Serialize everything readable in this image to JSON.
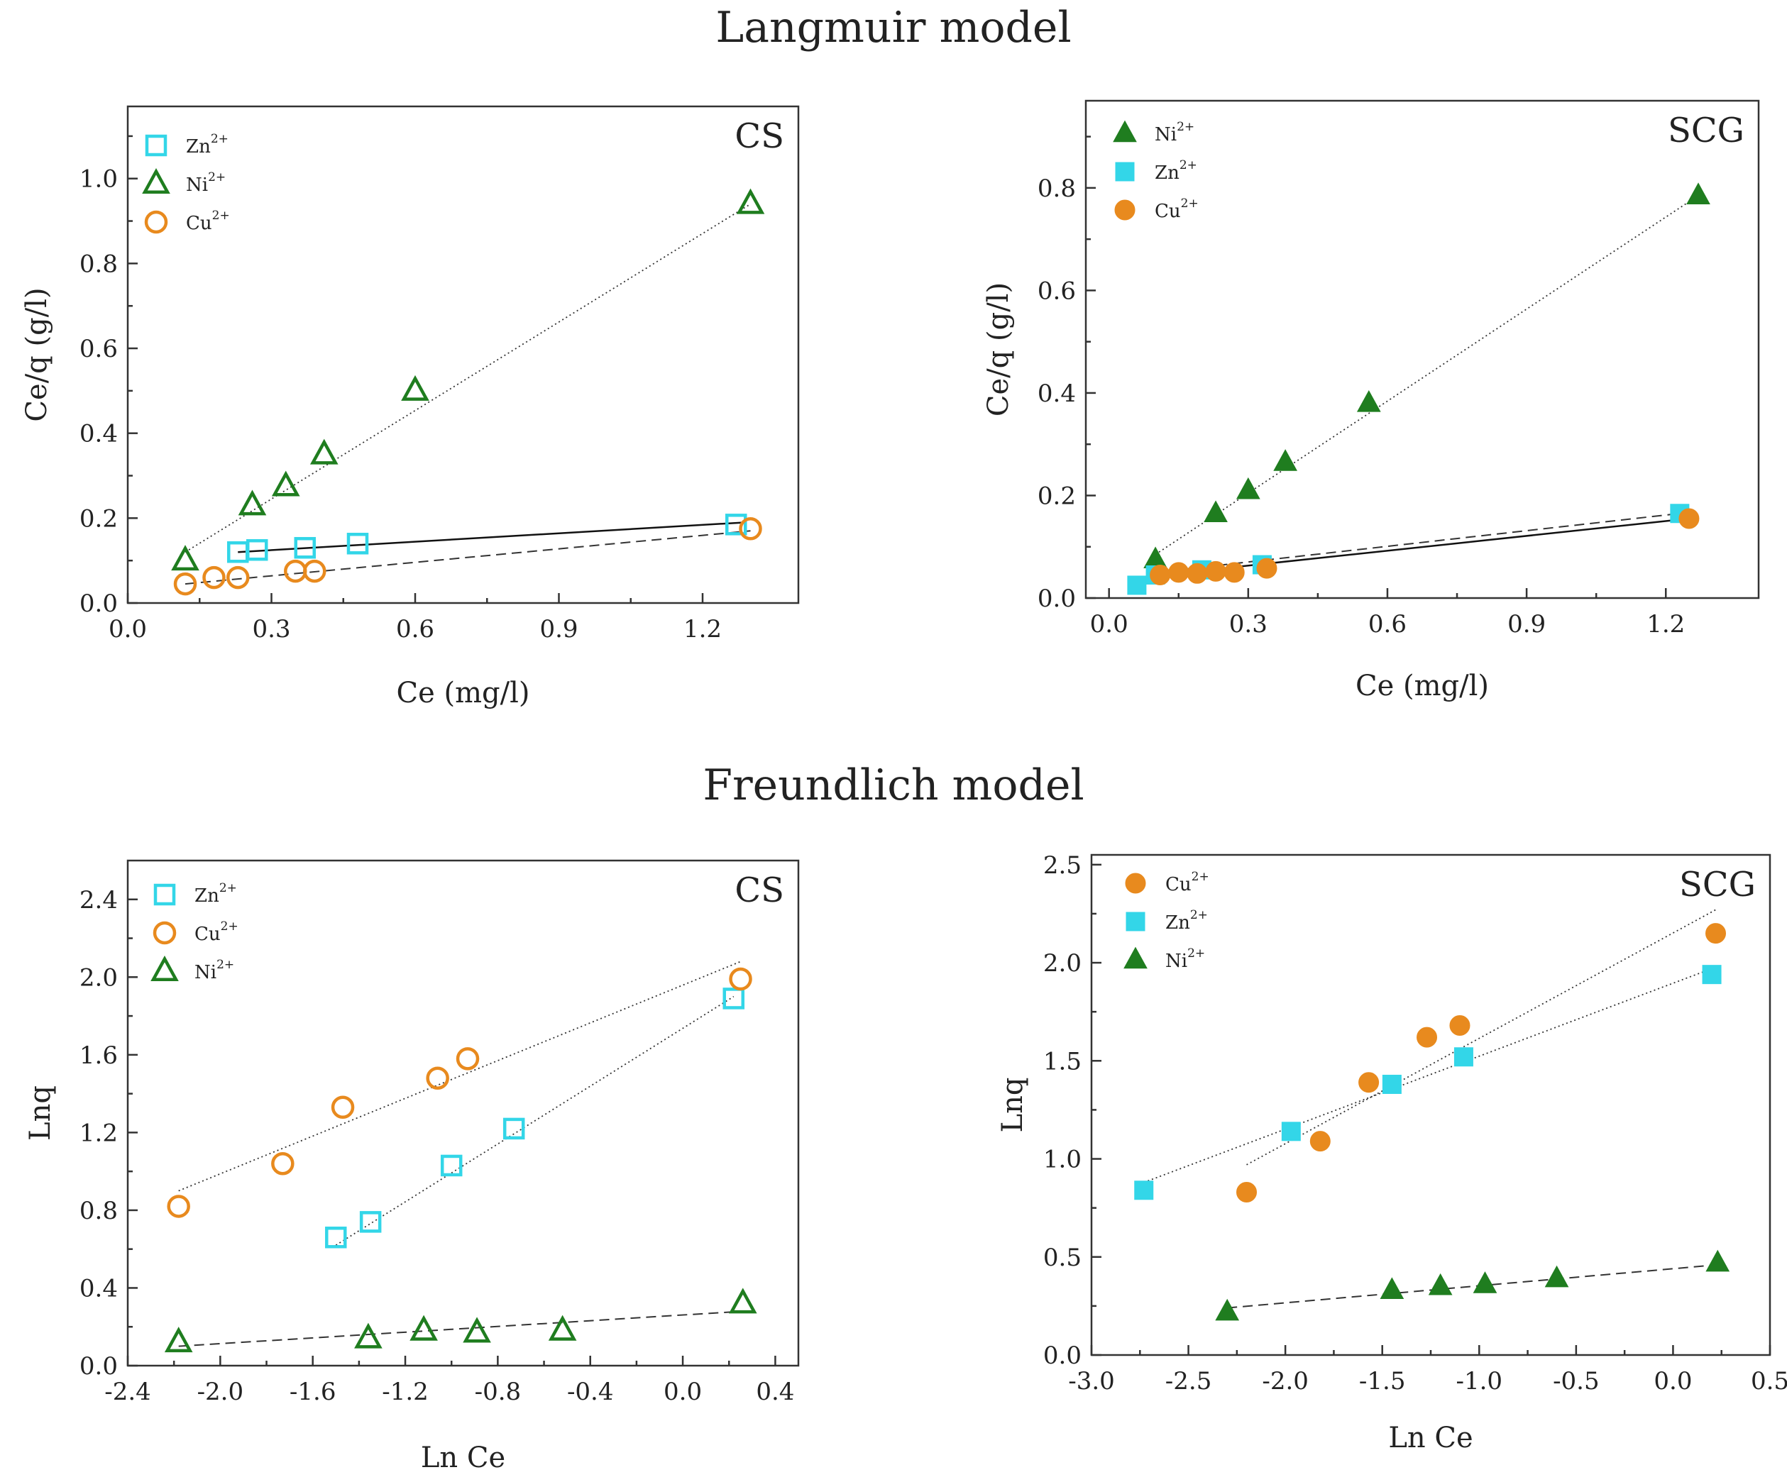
{
  "titles": {
    "langmuir": "Langmuir model",
    "freundlich": "Freundlich model"
  },
  "colors": {
    "zn": "#33d6e8",
    "ni": "#1f7d1f",
    "cu": "#e88a1e",
    "axis": "#333333"
  },
  "chart_data": [
    {
      "id": "langmuir-cs",
      "type": "scatter",
      "panel_label": "CS",
      "filled": false,
      "xlabel": "Ce (mg/l)",
      "ylabel": "Ce/q (g/l)",
      "xlim": [
        0.0,
        1.4
      ],
      "ylim": [
        0.0,
        1.17
      ],
      "xticks": [
        0.0,
        0.3,
        0.6,
        0.9,
        1.2
      ],
      "xtick_labels": [
        "0.0",
        "0.3",
        "0.6",
        "0.9",
        "1.2"
      ],
      "yticks": [
        0.0,
        0.2,
        0.4,
        0.6,
        0.8,
        1.0
      ],
      "ytick_labels": [
        "0.0",
        "0.2",
        "0.4",
        "0.6",
        "0.8",
        "1.0"
      ],
      "legend_position": "top-left",
      "legend": [
        {
          "series": "zn",
          "base": "Zn",
          "sup": "2+"
        },
        {
          "series": "ni",
          "base": "Ni",
          "sup": "2+"
        },
        {
          "series": "cu",
          "base": "Cu",
          "sup": "2+"
        }
      ],
      "series": [
        {
          "key": "zn",
          "name": "Zn2+",
          "marker": "square",
          "x": [
            0.23,
            0.27,
            0.37,
            0.48,
            1.27
          ],
          "y": [
            0.12,
            0.125,
            0.13,
            0.14,
            0.185
          ],
          "fit": {
            "style": "solid",
            "x": [
              0.23,
              1.29
            ],
            "y": [
              0.12,
              0.19
            ]
          }
        },
        {
          "key": "ni",
          "name": "Ni2+",
          "marker": "triangle",
          "x": [
            0.12,
            0.26,
            0.33,
            0.41,
            0.6,
            1.3
          ],
          "y": [
            0.1,
            0.23,
            0.275,
            0.35,
            0.5,
            0.94
          ],
          "fit": {
            "style": "dotted",
            "x": [
              0.12,
              1.3
            ],
            "y": [
              0.12,
              0.94
            ]
          }
        },
        {
          "key": "cu",
          "name": "Cu2+",
          "marker": "circle",
          "x": [
            0.12,
            0.18,
            0.23,
            0.35,
            0.39,
            1.3
          ],
          "y": [
            0.045,
            0.06,
            0.06,
            0.075,
            0.075,
            0.175
          ],
          "fit": {
            "style": "dashed",
            "x": [
              0.12,
              1.3
            ],
            "y": [
              0.045,
              0.17
            ]
          }
        }
      ]
    },
    {
      "id": "langmuir-scg",
      "type": "scatter",
      "panel_label": "SCG",
      "filled": true,
      "xlabel": "Ce (mg/l)",
      "ylabel": "Ce/q (g/l)",
      "xlim": [
        -0.05,
        1.4
      ],
      "ylim": [
        0.0,
        0.97
      ],
      "xticks": [
        0.0,
        0.3,
        0.6,
        0.9,
        1.2
      ],
      "xtick_labels": [
        "0.0",
        "0.3",
        "0.6",
        "0.9",
        "1.2"
      ],
      "yticks": [
        0.0,
        0.2,
        0.4,
        0.6,
        0.8
      ],
      "ytick_labels": [
        "0.0",
        "0.2",
        "0.4",
        "0.6",
        "0.8"
      ],
      "legend_position": "top-left",
      "legend": [
        {
          "series": "ni",
          "base": "Ni",
          "sup": "2+"
        },
        {
          "series": "zn",
          "base": "Zn",
          "sup": "2+"
        },
        {
          "series": "cu",
          "base": "Cu",
          "sup": "2+"
        }
      ],
      "series": [
        {
          "key": "ni",
          "name": "Ni2+",
          "marker": "triangle",
          "x": [
            0.1,
            0.23,
            0.3,
            0.38,
            0.56,
            1.27
          ],
          "y": [
            0.075,
            0.165,
            0.21,
            0.265,
            0.38,
            0.785
          ],
          "fit": {
            "style": "dotted",
            "x": [
              0.1,
              1.27
            ],
            "y": [
              0.085,
              0.785
            ]
          }
        },
        {
          "key": "zn",
          "name": "Zn2+",
          "marker": "square",
          "x": [
            0.06,
            0.1,
            0.2,
            0.33,
            1.23
          ],
          "y": [
            0.025,
            0.045,
            0.055,
            0.065,
            0.165
          ],
          "fit": {
            "style": "dashed",
            "x": [
              0.1,
              1.23
            ],
            "y": [
              0.05,
              0.165
            ]
          }
        },
        {
          "key": "cu",
          "name": "Cu2+",
          "marker": "circle",
          "x": [
            0.11,
            0.15,
            0.19,
            0.23,
            0.27,
            0.34,
            1.25
          ],
          "y": [
            0.045,
            0.05,
            0.048,
            0.052,
            0.05,
            0.058,
            0.155
          ],
          "fit": {
            "style": "solid",
            "x": [
              0.11,
              1.25
            ],
            "y": [
              0.045,
              0.155
            ]
          }
        }
      ]
    },
    {
      "id": "freundlich-cs",
      "type": "scatter",
      "panel_label": "CS",
      "filled": false,
      "xlabel": "Ln Ce",
      "ylabel": "Lnq",
      "xlim": [
        -2.4,
        0.5
      ],
      "ylim": [
        0.0,
        2.6
      ],
      "xticks": [
        -2.4,
        -2.0,
        -1.6,
        -1.2,
        -0.8,
        -0.4,
        0.0,
        0.4
      ],
      "xtick_labels": [
        "-2.4",
        "-2.0",
        "-1.6",
        "-1.2",
        "-0.8",
        "-0.4",
        "0.0",
        "0.4"
      ],
      "yticks": [
        0.0,
        0.4,
        0.8,
        1.2,
        1.6,
        2.0,
        2.4
      ],
      "ytick_labels": [
        "0.0",
        "0.4",
        "0.8",
        "1.2",
        "1.6",
        "2.0",
        "2.4"
      ],
      "legend_position": "top-left",
      "legend": [
        {
          "series": "zn",
          "base": "Zn",
          "sup": "2+"
        },
        {
          "series": "cu",
          "base": "Cu",
          "sup": "2+"
        },
        {
          "series": "ni",
          "base": "Ni",
          "sup": "2+"
        }
      ],
      "series": [
        {
          "key": "zn",
          "name": "Zn2+",
          "marker": "square",
          "x": [
            -1.5,
            -1.35,
            -1.0,
            -0.73,
            0.22
          ],
          "y": [
            0.66,
            0.74,
            1.03,
            1.22,
            1.89
          ],
          "fit": {
            "style": "dotted",
            "x": [
              -1.5,
              0.22
            ],
            "y": [
              0.62,
              1.9
            ]
          }
        },
        {
          "key": "cu",
          "name": "Cu2+",
          "marker": "circle",
          "x": [
            -2.18,
            -1.73,
            -1.47,
            -1.06,
            -0.93,
            0.25
          ],
          "y": [
            0.82,
            1.04,
            1.33,
            1.48,
            1.58,
            1.99
          ],
          "fit": {
            "style": "dotted",
            "x": [
              -2.18,
              0.25
            ],
            "y": [
              0.9,
              2.08
            ]
          }
        },
        {
          "key": "ni",
          "name": "Ni2+",
          "marker": "triangle",
          "x": [
            -2.18,
            -1.36,
            -1.12,
            -0.89,
            -0.52,
            0.26
          ],
          "y": [
            0.12,
            0.14,
            0.18,
            0.17,
            0.18,
            0.32
          ],
          "fit": {
            "style": "dashed",
            "x": [
              -2.18,
              0.26
            ],
            "y": [
              0.1,
              0.28
            ]
          }
        }
      ]
    },
    {
      "id": "freundlich-scg",
      "type": "scatter",
      "panel_label": "SCG",
      "filled": true,
      "xlabel": "Ln Ce",
      "ylabel": "Lnq",
      "xlim": [
        -3.0,
        0.5
      ],
      "ylim": [
        0.0,
        2.55
      ],
      "xticks": [
        -3.0,
        -2.5,
        -2.0,
        -1.5,
        -1.0,
        -0.5,
        0.0,
        0.5
      ],
      "xtick_labels": [
        "-3.0",
        "-2.5",
        "-2.0",
        "-1.5",
        "-1.0",
        "-0.5",
        "0.0",
        "0.5"
      ],
      "yticks": [
        0.0,
        0.5,
        1.0,
        1.5,
        2.0,
        2.5
      ],
      "ytick_labels": [
        "0.0",
        "0.5",
        "1.0",
        "1.5",
        "2.0",
        "2.5"
      ],
      "legend_position": "top-left",
      "legend": [
        {
          "series": "cu",
          "base": "Cu",
          "sup": "2+"
        },
        {
          "series": "zn",
          "base": "Zn",
          "sup": "2+"
        },
        {
          "series": "ni",
          "base": "Ni",
          "sup": "2+"
        }
      ],
      "series": [
        {
          "key": "cu",
          "name": "Cu2+",
          "marker": "circle",
          "x": [
            -2.2,
            -1.82,
            -1.57,
            -1.27,
            -1.1,
            0.22
          ],
          "y": [
            0.83,
            1.09,
            1.39,
            1.62,
            1.68,
            2.15
          ],
          "fit": {
            "style": "dotted",
            "x": [
              -2.2,
              0.22
            ],
            "y": [
              0.97,
              2.27
            ]
          }
        },
        {
          "key": "zn",
          "name": "Zn2+",
          "marker": "square",
          "x": [
            -2.73,
            -1.97,
            -1.45,
            -1.08,
            0.2
          ],
          "y": [
            0.84,
            1.14,
            1.38,
            1.52,
            1.94
          ],
          "fit": {
            "style": "dotted",
            "x": [
              -2.73,
              0.2
            ],
            "y": [
              0.88,
              1.97
            ]
          }
        },
        {
          "key": "ni",
          "name": "Ni2+",
          "marker": "triangle",
          "x": [
            -2.3,
            -1.45,
            -1.2,
            -0.97,
            -0.6,
            0.23
          ],
          "y": [
            0.22,
            0.33,
            0.35,
            0.36,
            0.39,
            0.47
          ],
          "fit": {
            "style": "dashed",
            "x": [
              -2.3,
              0.23
            ],
            "y": [
              0.24,
              0.46
            ]
          }
        }
      ]
    }
  ]
}
